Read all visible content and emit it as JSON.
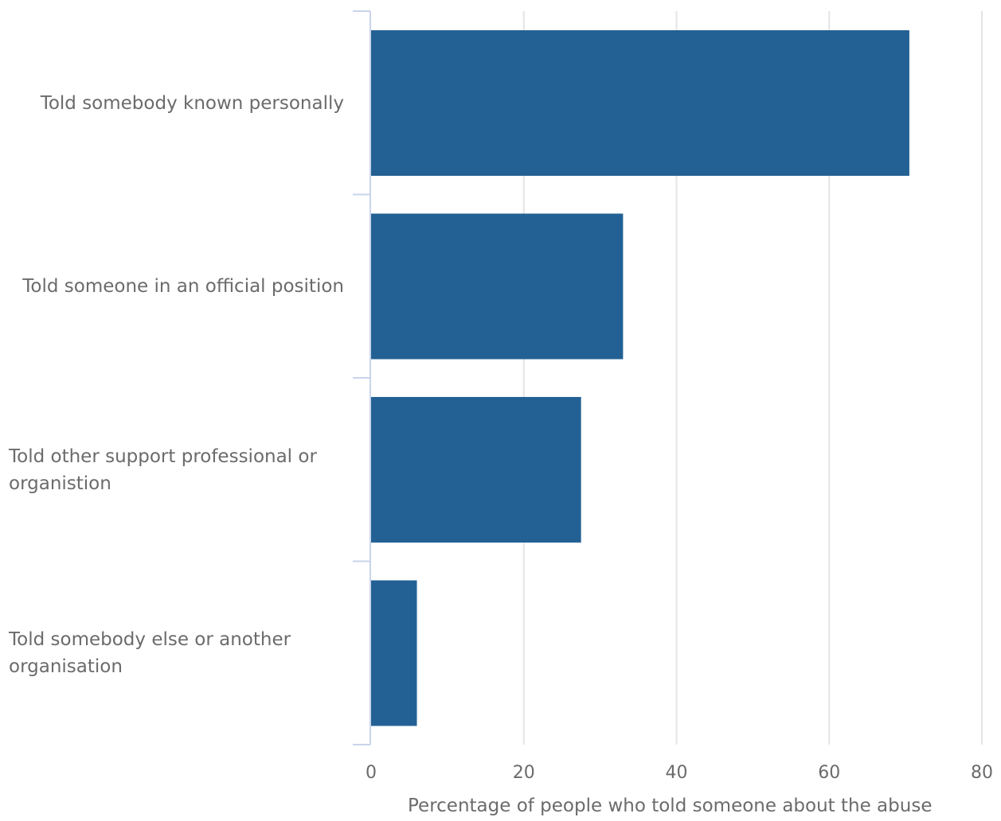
{
  "chart_data": {
    "type": "bar",
    "orientation": "horizontal",
    "categories": [
      "Told somebody known personally",
      "Told someone in an official position",
      "Told other support professional or organistion",
      "Told somebody else or another organisation"
    ],
    "values": [
      70.5,
      33,
      27.5,
      6
    ],
    "xlabel": "Percentage of people who told someone about the abuse",
    "ylabel": "",
    "xlim": [
      0,
      80
    ],
    "xticks": [
      0,
      20,
      40,
      60,
      80
    ],
    "grid": true,
    "colors": {
      "bar": "#236194",
      "grid": "#e4e4e4",
      "axis": "#c9d3ea",
      "text": "#6b6b6b"
    }
  }
}
